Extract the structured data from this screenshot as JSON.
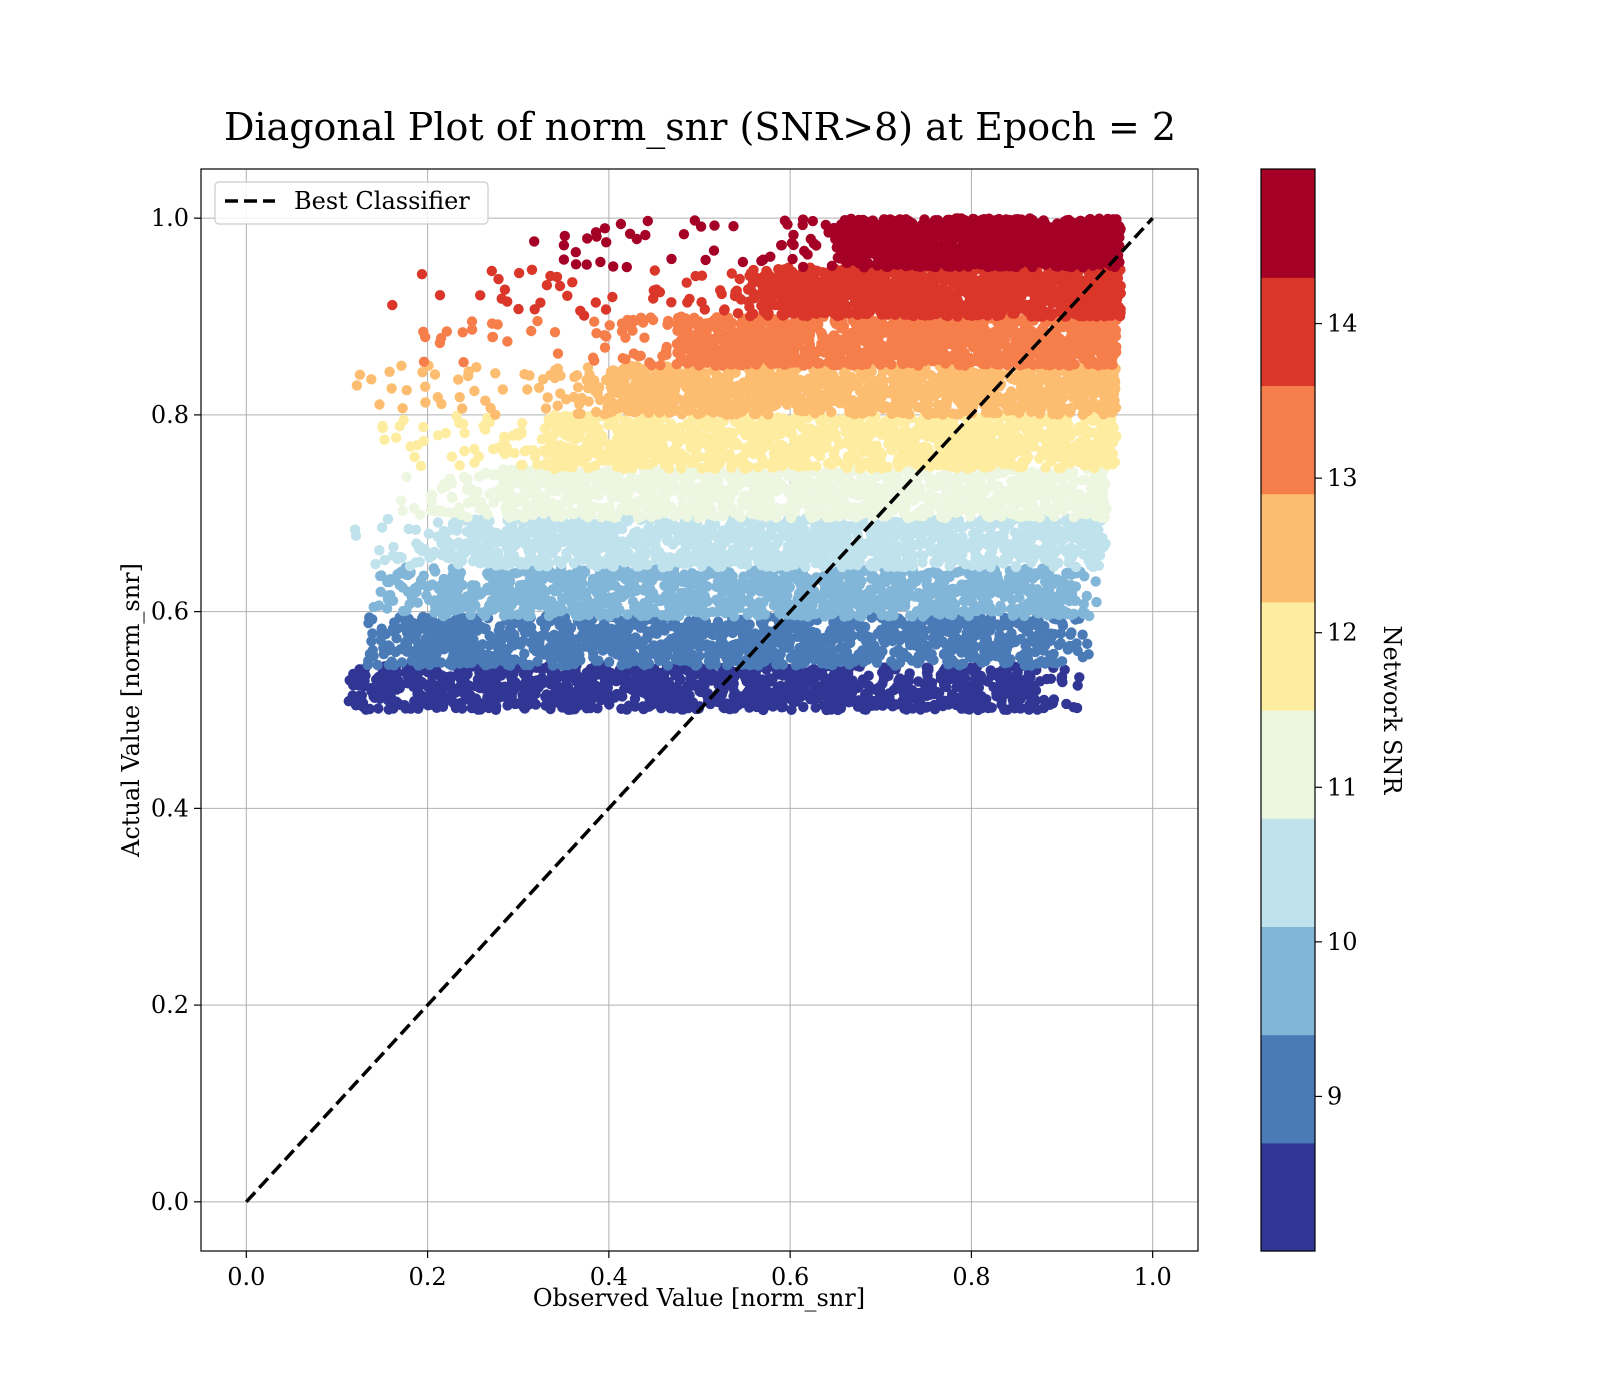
{
  "chart_data": {
    "type": "scatter",
    "title": "Diagonal Plot of norm_snr (SNR>8) at Epoch = 2",
    "xlabel": "Observed Value [norm_snr]",
    "ylabel": "Actual Value [norm_snr]",
    "xlim": [
      -0.05,
      1.05
    ],
    "ylim": [
      -0.05,
      1.05
    ],
    "xticks": [
      "0.0",
      "0.2",
      "0.4",
      "0.6",
      "0.8",
      "1.0"
    ],
    "yticks": [
      "0.0",
      "0.2",
      "0.4",
      "0.6",
      "0.8",
      "1.0"
    ],
    "grid": true,
    "legend": {
      "placement": "upper-left",
      "entries": [
        {
          "label": "Best Classifier",
          "style": "dashed",
          "color": "#000000"
        }
      ]
    },
    "reference_line": {
      "label": "Best Classifier",
      "x": [
        0.0,
        1.0
      ],
      "y": [
        0.0,
        1.0
      ]
    },
    "colorbar": {
      "label": "Network SNR",
      "boundaries": [
        8,
        9,
        10,
        11,
        12,
        13,
        14,
        15
      ],
      "display_range": [
        8,
        15
      ],
      "ticks": [
        9,
        10,
        11,
        12,
        13,
        14
      ],
      "tick_labels": [
        "9",
        "10",
        "11",
        "12",
        "13",
        "14"
      ],
      "colors": [
        "#313695",
        "#4575b4",
        "#74add1",
        "#abd9e9",
        "#e0f3f8",
        "#fee090",
        "#fdae61",
        "#f46d43",
        "#d73027",
        "#a50026"
      ],
      "bands": [
        {
          "min": 8.0,
          "max": 8.7,
          "color": "#313695"
        },
        {
          "min": 8.7,
          "max": 9.4,
          "color": "#4a7bb7"
        },
        {
          "min": 9.4,
          "max": 10.1,
          "color": "#82b6d8"
        },
        {
          "min": 10.1,
          "max": 10.8,
          "color": "#bfe2ec"
        },
        {
          "min": 10.8,
          "max": 11.5,
          "color": "#edf6e0"
        },
        {
          "min": 11.5,
          "max": 12.2,
          "color": "#feeda1"
        },
        {
          "min": 12.2,
          "max": 12.9,
          "color": "#fdbd70"
        },
        {
          "min": 12.9,
          "max": 13.6,
          "color": "#f67e4b"
        },
        {
          "min": 13.6,
          "max": 14.3,
          "color": "#da372a"
        },
        {
          "min": 14.3,
          "max": 15.0,
          "color": "#a50026"
        }
      ]
    },
    "series": [
      {
        "y_range": [
          0.5,
          0.545
        ],
        "x_core": [
          0.16,
          0.87
        ],
        "x_spread": [
          0.11,
          0.92
        ],
        "color": "#313695"
      },
      {
        "y_range": [
          0.545,
          0.595
        ],
        "x_core": [
          0.19,
          0.89
        ],
        "x_spread": [
          0.13,
          0.93
        ],
        "color": "#4a7bb7"
      },
      {
        "y_range": [
          0.595,
          0.645
        ],
        "x_core": [
          0.22,
          0.91
        ],
        "x_spread": [
          0.14,
          0.94
        ],
        "color": "#82b6d8"
      },
      {
        "y_range": [
          0.645,
          0.695
        ],
        "x_core": [
          0.25,
          0.93
        ],
        "x_spread": [
          0.12,
          0.95
        ],
        "color": "#bfe2ec"
      },
      {
        "y_range": [
          0.695,
          0.745
        ],
        "x_core": [
          0.29,
          0.94
        ],
        "x_spread": [
          0.16,
          0.95
        ],
        "color": "#edf6e0"
      },
      {
        "y_range": [
          0.745,
          0.8
        ],
        "x_core": [
          0.34,
          0.95
        ],
        "x_spread": [
          0.15,
          0.96
        ],
        "color": "#feeda1"
      },
      {
        "y_range": [
          0.8,
          0.85
        ],
        "x_core": [
          0.4,
          0.955
        ],
        "x_spread": [
          0.12,
          0.96
        ],
        "color": "#fdbd70"
      },
      {
        "y_range": [
          0.85,
          0.9
        ],
        "x_core": [
          0.48,
          0.955
        ],
        "x_spread": [
          0.18,
          0.96
        ],
        "color": "#f67e4b"
      },
      {
        "y_range": [
          0.9,
          0.95
        ],
        "x_core": [
          0.57,
          0.96
        ],
        "x_spread": [
          0.14,
          0.965
        ],
        "color": "#da372a"
      },
      {
        "y_range": [
          0.95,
          1.0
        ],
        "x_core": [
          0.66,
          0.96
        ],
        "x_spread": [
          0.28,
          0.965
        ],
        "color": "#a50026"
      }
    ]
  }
}
